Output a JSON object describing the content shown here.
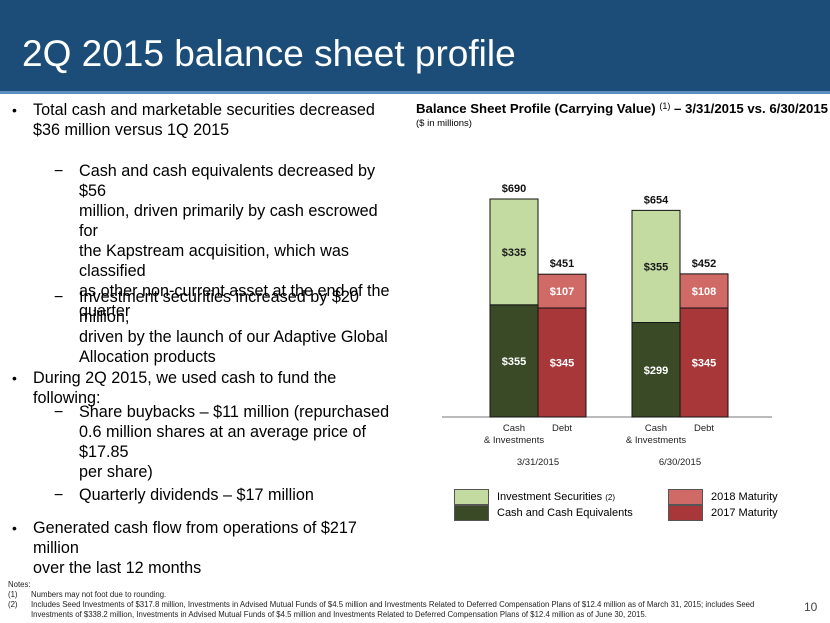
{
  "header": {
    "title": "2Q 2015 balance sheet profile"
  },
  "bullets": {
    "b1": {
      "line1": "Total cash and marketable securities decreased",
      "line2": "$36 million versus 1Q 2015"
    },
    "b1a": {
      "lines": [
        "Cash and cash equivalents decreased by $56",
        "million, driven primarily by cash escrowed for",
        "the Kapstream acquisition, which was classified",
        "as other non-current asset at the end of the",
        "quarter"
      ]
    },
    "b1b": {
      "lines": [
        "Investment securities increased by $20 million,",
        "driven by the launch of our Adaptive Global",
        "Allocation products"
      ]
    },
    "b2": {
      "line1": "During 2Q 2015, we used cash to fund the following:"
    },
    "b2a": {
      "lines": [
        "Share buybacks – $11 million (repurchased",
        "0.6 million shares at an average price of $17.85",
        "per share)"
      ]
    },
    "b2b": {
      "line1": "Quarterly dividends – $17 million"
    },
    "b3": {
      "line1": "Generated cash flow from operations of $217 million",
      "line2": "over the last 12 months"
    },
    "bullet_char": "•",
    "dash_char": "−"
  },
  "chart_header": {
    "title_main": "Balance Sheet Profile (Carrying Value)",
    "title_sup": "(1)",
    "title_tail": "– 3/31/2015 vs. 6/30/2015",
    "subtitle": "($ in millions)"
  },
  "chart_data": {
    "type": "bar",
    "stacked": true,
    "groups": [
      {
        "date": "3/31/2015",
        "bars": [
          {
            "category_lines": [
              "Cash",
              "& Investments"
            ],
            "total_label": "$690",
            "segments": [
              {
                "series": "Cash and Cash Equivalents",
                "value": 355,
                "label": "$355"
              },
              {
                "series": "Investment Securities",
                "value": 335,
                "label": "$335"
              }
            ]
          },
          {
            "category_lines": [
              "Debt"
            ],
            "total_label": "$451",
            "segments": [
              {
                "series": "2017 Maturity",
                "value": 345,
                "label": "$345"
              },
              {
                "series": "2018 Maturity",
                "value": 107,
                "label": "$107"
              }
            ]
          }
        ]
      },
      {
        "date": "6/30/2015",
        "bars": [
          {
            "category_lines": [
              "Cash",
              "& Investments"
            ],
            "total_label": "$654",
            "segments": [
              {
                "series": "Cash and Cash Equivalents",
                "value": 299,
                "label": "$299"
              },
              {
                "series": "Investment Securities",
                "value": 355,
                "label": "$355"
              }
            ]
          },
          {
            "category_lines": [
              "Debt"
            ],
            "total_label": "$452",
            "segments": [
              {
                "series": "2017 Maturity",
                "value": 345,
                "label": "$345"
              },
              {
                "series": "2018 Maturity",
                "value": 108,
                "label": "$108"
              }
            ]
          }
        ]
      }
    ],
    "series_colors": {
      "Investment Securities": "#c3dba0",
      "Cash and Cash Equivalents": "#3a4a26",
      "2018 Maturity": "#cf6a67",
      "2017 Maturity": "#a8373a"
    },
    "grid": false,
    "legend": "bottom"
  },
  "legend": {
    "inv_label": "Investment Securities",
    "inv_sup": "(2)",
    "cash_label": "Cash and Cash Equivalents",
    "m2018_label": "2018 Maturity",
    "m2017_label": "2017 Maturity"
  },
  "notes": {
    "heading": "Notes:",
    "n1_num": "(1)",
    "n1_text": "Numbers may not foot due to rounding.",
    "n2_num": "(2)",
    "n2_text": "Includes Seed Investments of $317.8 million, Investments in Advised Mutual Funds of $4.5 million and Investments Related to Deferred Compensation Plans of $12.4 million as of March 31, 2015; includes Seed Investments of $338.2 million, Investments in Advised Mutual Funds of $4.5 million and Investments Related to Deferred Compensation Plans of $12.4 million as of June 30, 2015."
  },
  "page_number": "10"
}
